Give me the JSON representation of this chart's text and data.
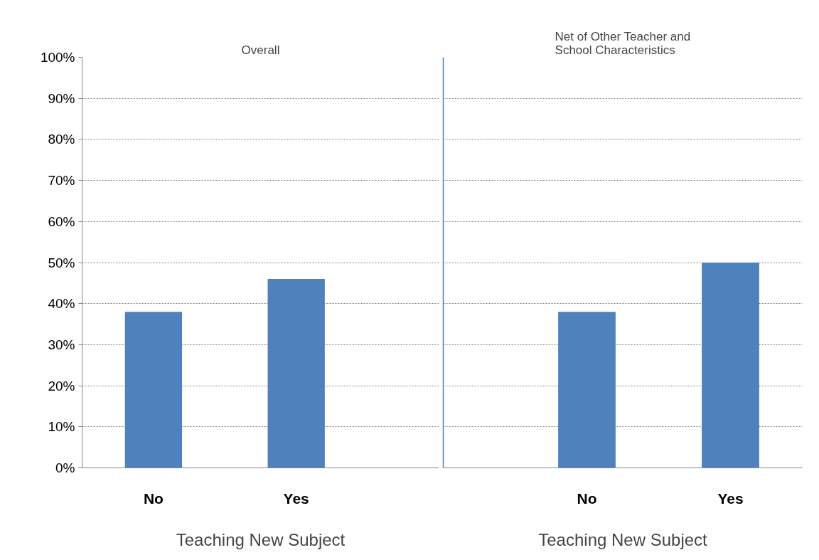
{
  "chart_data": [
    {
      "type": "bar",
      "title": "Overall",
      "categories": [
        "No",
        "Yes"
      ],
      "values": [
        38,
        46
      ],
      "color": "#4f81bd",
      "xlabel": "Teaching New Subject",
      "ylim": [
        0,
        100
      ],
      "yticks": [
        {
          "value": 0,
          "label": "0%"
        },
        {
          "value": 10,
          "label": "10%"
        },
        {
          "value": 20,
          "label": "20%"
        },
        {
          "value": 30,
          "label": "30%"
        },
        {
          "value": 40,
          "label": "40%"
        },
        {
          "value": 50,
          "label": "50%"
        },
        {
          "value": 60,
          "label": "60%"
        },
        {
          "value": 70,
          "label": "70%"
        },
        {
          "value": 80,
          "label": "80%"
        },
        {
          "value": 90,
          "label": "90%"
        },
        {
          "value": 100,
          "label": "100%"
        }
      ],
      "grid": "y"
    },
    {
      "type": "bar",
      "title": "Net of Other Teacher and\nSchool Characteristics",
      "categories": [
        "No",
        "Yes"
      ],
      "values": [
        38,
        50
      ],
      "color": "#4f81bd",
      "xlabel": "Teaching New Subject",
      "ylim": [
        0,
        100
      ],
      "yticks": [
        0,
        10,
        20,
        30,
        40,
        50,
        60,
        70,
        80,
        90,
        100
      ],
      "grid": "y",
      "tick_labels": "x"
    }
  ]
}
